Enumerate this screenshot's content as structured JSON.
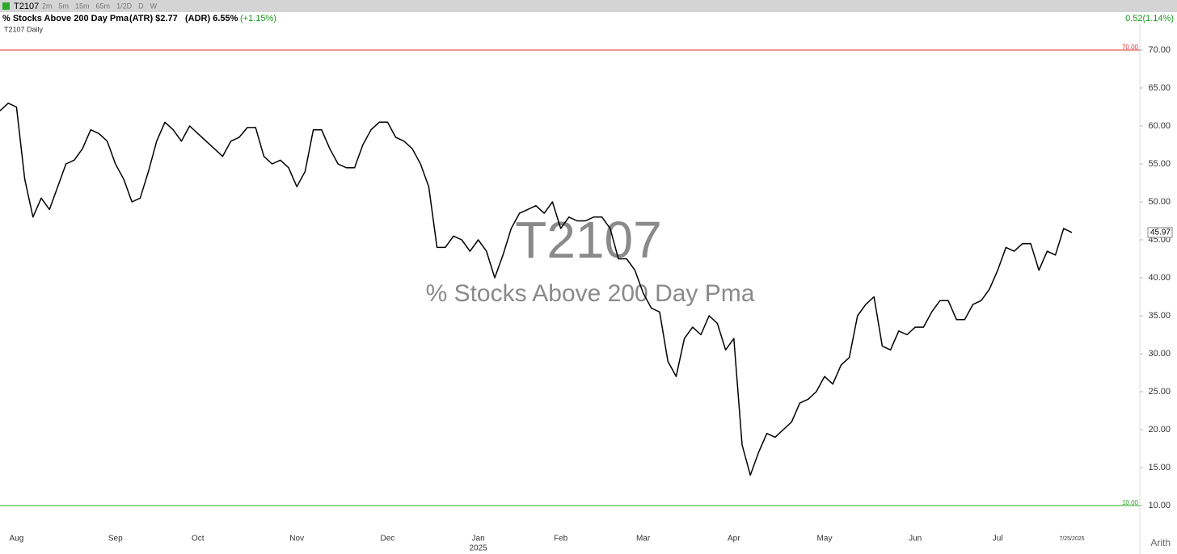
{
  "ui": {
    "symbol": "T2107",
    "timeframes": [
      "2m",
      "5m",
      "15m",
      "65m",
      "1/2D",
      "D",
      "W"
    ],
    "description": "% Stocks Above 200 Day Pma",
    "atr": "(ATR) $2.77",
    "adr": "(ADR) 6.55%",
    "change": "(+1.15%)",
    "right_change": "0.52(1.14%)",
    "chart_label": "T2107 Daily",
    "scale_mode": "Arith"
  },
  "chart_data": {
    "type": "line",
    "watermark_title": "T2107",
    "watermark_subtitle": "% Stocks Above 200 Day Pma",
    "categories": [
      null,
      null,
      "Aug",
      null,
      null,
      null,
      null,
      null,
      null,
      null,
      null,
      null,
      null,
      null,
      "Sep",
      null,
      null,
      null,
      null,
      null,
      null,
      null,
      null,
      null,
      "Oct",
      null,
      null,
      null,
      null,
      null,
      null,
      null,
      null,
      null,
      null,
      null,
      "Nov",
      null,
      null,
      null,
      null,
      null,
      null,
      null,
      null,
      null,
      null,
      "Dec",
      null,
      null,
      null,
      null,
      null,
      null,
      null,
      null,
      null,
      null,
      "Jan",
      null,
      null,
      null,
      null,
      null,
      null,
      null,
      null,
      null,
      "Feb",
      null,
      null,
      null,
      null,
      null,
      null,
      null,
      null,
      null,
      "Mar",
      null,
      null,
      null,
      null,
      null,
      null,
      null,
      null,
      null,
      null,
      "Apr",
      null,
      null,
      null,
      null,
      null,
      null,
      null,
      null,
      null,
      null,
      "May",
      null,
      null,
      null,
      null,
      null,
      null,
      null,
      null,
      null,
      null,
      "Jun",
      null,
      null,
      null,
      null,
      null,
      null,
      null,
      null,
      null,
      "Jul",
      null,
      null,
      null,
      null,
      null,
      null,
      null,
      null,
      "7/25/2025"
    ],
    "year_label": "2025",
    "series": [
      {
        "name": "T2107",
        "color": "#000000",
        "values": [
          62,
          63,
          62.5,
          53,
          48,
          50.5,
          49,
          52,
          55,
          55.5,
          57,
          59.5,
          59,
          58,
          55,
          53,
          50,
          50.5,
          54,
          58,
          60.5,
          59.5,
          58,
          60,
          59,
          58,
          57,
          56,
          58,
          58.5,
          59.8,
          59.8,
          56,
          55,
          55.5,
          54.5,
          52,
          54,
          59.5,
          59.5,
          57,
          55,
          54.5,
          54.5,
          57.5,
          59.5,
          60.5,
          60.5,
          58.5,
          58,
          57,
          55,
          52,
          44,
          44,
          45.5,
          45,
          43.5,
          45,
          43.5,
          40,
          43,
          46.5,
          48.5,
          49,
          49.5,
          48.5,
          50,
          46.5,
          48,
          47.5,
          47.5,
          48,
          48,
          46.5,
          42.5,
          42.5,
          41,
          38,
          36,
          35.5,
          29,
          27,
          32,
          33.5,
          32.5,
          35,
          34,
          30.5,
          32,
          18,
          14,
          17,
          19.5,
          19,
          20,
          21,
          23.5,
          24,
          25,
          27,
          26,
          28.5,
          29.5,
          35,
          36.5,
          37.5,
          31,
          30.5,
          33,
          32.5,
          33.5,
          33.5,
          35.5,
          37,
          37,
          34.5,
          34.5,
          36.5,
          37,
          38.5,
          41,
          44,
          43.5,
          44.5,
          44.5,
          41,
          43.5,
          43,
          46.5,
          45.97
        ]
      }
    ],
    "last_value_label": "45.97",
    "ylim": [
      7.45,
      73.4
    ],
    "yticks": [
      {
        "value": 10,
        "label": "10.00"
      },
      {
        "value": 15,
        "label": "15.00"
      },
      {
        "value": 20,
        "label": "20.00"
      },
      {
        "value": 25,
        "label": "25.00"
      },
      {
        "value": 30,
        "label": "30.00"
      },
      {
        "value": 35,
        "label": "35.00"
      },
      {
        "value": 40,
        "label": "40.00"
      },
      {
        "value": 45,
        "label": "45.00"
      },
      {
        "value": 50,
        "label": "50.00"
      },
      {
        "value": 55,
        "label": "55.00"
      },
      {
        "value": 60,
        "label": "60.00"
      },
      {
        "value": 65,
        "label": "65.00"
      },
      {
        "value": 70,
        "label": "70.00"
      }
    ],
    "reference_lines": [
      {
        "value": 70,
        "label": "70.00",
        "color": "#e03030"
      },
      {
        "value": 10,
        "label": "10.00",
        "color": "#2aa82a"
      }
    ]
  }
}
